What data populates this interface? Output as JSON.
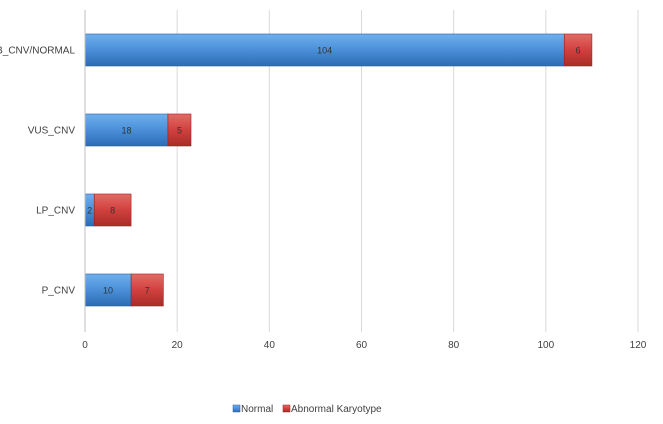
{
  "chart_data": {
    "type": "bar",
    "orientation": "horizontal",
    "stacked": true,
    "categories": [
      "P_CNV",
      "LP_CNV",
      "VUS_CNV",
      "B_CNV/NORMAL"
    ],
    "series": [
      {
        "name": "Normal",
        "values": [
          10,
          2,
          18,
          104
        ],
        "color": "#4a8fd8"
      },
      {
        "name": "Abnormal Karyotype",
        "values": [
          7,
          8,
          5,
          6
        ],
        "color": "#d0413e"
      }
    ],
    "xlim": [
      0,
      120
    ],
    "x_ticks": [
      "0",
      "20",
      "40",
      "60",
      "80",
      "100",
      "120"
    ],
    "grid": "vertical",
    "legend_position": "bottom",
    "title": "",
    "xlabel": "",
    "ylabel": ""
  }
}
